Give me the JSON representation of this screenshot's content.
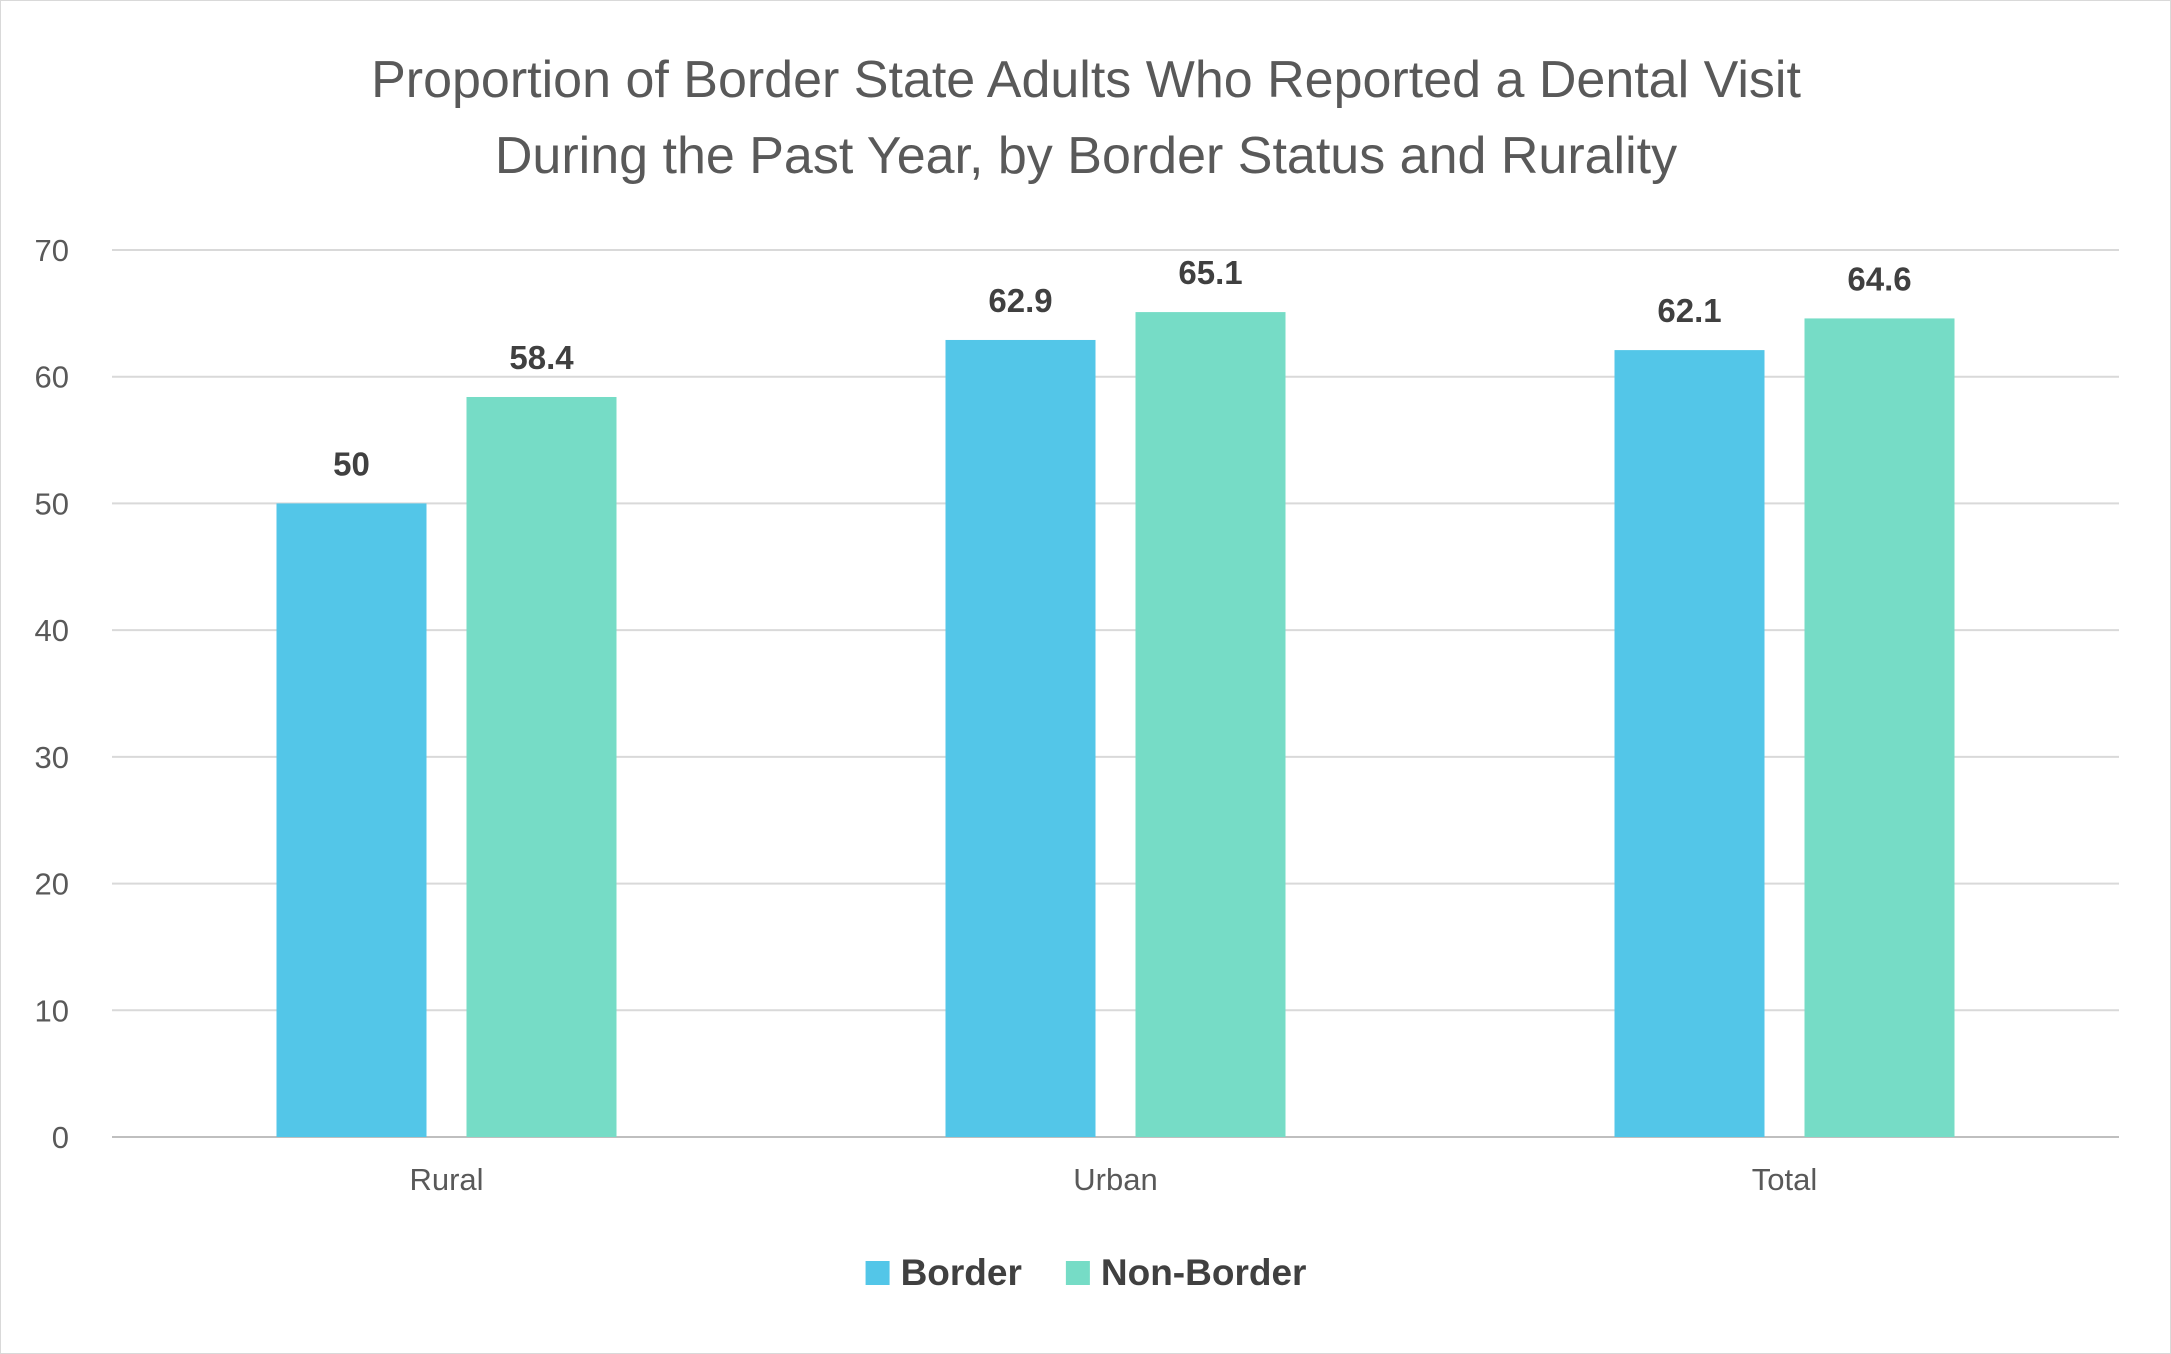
{
  "chart_data": {
    "type": "bar",
    "title_lines": [
      "Proportion of Border State Adults Who Reported a Dental Visit",
      "During the Past Year, by Border Status and Rurality"
    ],
    "categories": [
      "Rural",
      "Urban",
      "Total"
    ],
    "series": [
      {
        "name": "Border",
        "values": [
          50,
          62.9,
          62.1
        ],
        "labels": [
          "50",
          "62.9",
          "62.1"
        ],
        "color": "#53C6E8"
      },
      {
        "name": "Non-Border",
        "values": [
          58.4,
          65.1,
          64.6
        ],
        "labels": [
          "58.4",
          "65.1",
          "64.6"
        ],
        "color": "#76DCC6"
      }
    ],
    "ylim": [
      0,
      70
    ],
    "yticks": [
      0,
      10,
      20,
      30,
      40,
      50,
      60,
      70
    ],
    "ytick_labels": [
      "0",
      "10",
      "20",
      "30",
      "40",
      "50",
      "60",
      "70"
    ],
    "xlabel": "",
    "ylabel": "",
    "grid": true,
    "legend_position": "bottom-center"
  }
}
